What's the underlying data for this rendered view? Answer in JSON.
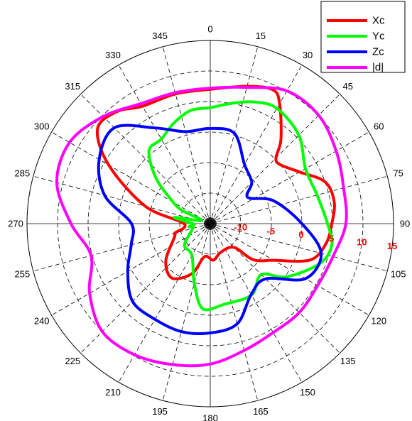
{
  "chart_data": {
    "type": "polar-line",
    "angular_axis": {
      "zero_direction": "top",
      "rotation": "clockwise",
      "tick_step_deg": 15,
      "tick_labels": [
        "0",
        "15",
        "30",
        "45",
        "60",
        "75",
        "90",
        "105",
        "120",
        "135",
        "150",
        "165",
        "180",
        "195",
        "210",
        "225",
        "240",
        "255",
        "270",
        "285",
        "300",
        "315",
        "330",
        "345"
      ]
    },
    "radial_axis": {
      "range": [
        -15,
        15
      ],
      "tick_values": [
        -10,
        -5,
        0,
        5,
        10,
        15
      ],
      "tick_labels": [
        "-10",
        "-5",
        "0",
        "5",
        "10",
        "15"
      ],
      "label_color": "#ff0000",
      "label_angle_deg": 97,
      "grid": "dashed"
    },
    "legend": {
      "placement": "top-right",
      "entries": [
        {
          "label": "Xc",
          "color": "#ff0000"
        },
        {
          "label": "Yc",
          "color": "#00ff00"
        },
        {
          "label": "Zc",
          "color": "#0000ff"
        },
        {
          "label": "|d|",
          "color": "#ff00ff"
        }
      ]
    },
    "series": [
      {
        "name": "Xc",
        "color": "#ff0000",
        "points": [
          [
            0,
            7.0
          ],
          [
            15,
            8.3
          ],
          [
            25,
            9.2
          ],
          [
            30,
            7.7
          ],
          [
            40,
            3.0
          ],
          [
            45,
            0.2
          ],
          [
            50,
            0.0
          ],
          [
            60,
            1.9
          ],
          [
            70,
            5.0
          ],
          [
            80,
            5.6
          ],
          [
            90,
            4.9
          ],
          [
            100,
            4.2
          ],
          [
            110,
            2.4
          ],
          [
            120,
            -3.0
          ],
          [
            130,
            -5.8
          ],
          [
            135,
            -9.5
          ],
          [
            160,
            -10.0
          ],
          [
            175,
            -9.0
          ],
          [
            190,
            -9.5
          ],
          [
            200,
            -6.3
          ],
          [
            215,
            -4.1
          ],
          [
            230,
            -5.5
          ],
          [
            250,
            -8.8
          ],
          [
            255,
            -9.0
          ],
          [
            270,
            -10.7
          ],
          [
            285,
            -4.0
          ],
          [
            300,
            4.2
          ],
          [
            310,
            9.1
          ],
          [
            320,
            8.9
          ],
          [
            330,
            7.2
          ],
          [
            345,
            7.0
          ],
          [
            360,
            7.0
          ]
        ]
      },
      {
        "name": "Yc",
        "color": "#00ff00",
        "points": [
          [
            0,
            4.0
          ],
          [
            10,
            5.0
          ],
          [
            20,
            6.2
          ],
          [
            30,
            6.8
          ],
          [
            45,
            5.5
          ],
          [
            60,
            3.0
          ],
          [
            75,
            3.1
          ],
          [
            90,
            4.2
          ],
          [
            100,
            5.2
          ],
          [
            110,
            4.1
          ],
          [
            125,
            0.2
          ],
          [
            135,
            -3.2
          ],
          [
            150,
            -1.5
          ],
          [
            170,
            -1.6
          ],
          [
            185,
            -1.0
          ],
          [
            195,
            -4.9
          ],
          [
            210,
            -9.0
          ],
          [
            230,
            -9.5
          ],
          [
            255,
            -12.0
          ],
          [
            262,
            -11.5
          ],
          [
            268,
            -12.3
          ],
          [
            280,
            -9.0
          ],
          [
            290,
            -13.5
          ],
          [
            295,
            -10.0
          ],
          [
            300,
            -8.0
          ],
          [
            310,
            -3.4
          ],
          [
            320,
            0.6
          ],
          [
            330,
            1.0
          ],
          [
            340,
            2.5
          ],
          [
            350,
            3.8
          ],
          [
            360,
            4.0
          ]
        ]
      },
      {
        "name": "Zc",
        "color": "#0000ff",
        "points": [
          [
            0,
            0.6
          ],
          [
            15,
            0.3
          ],
          [
            30,
            -3.8
          ],
          [
            45,
            -5.4
          ],
          [
            55,
            -7.5
          ],
          [
            70,
            -4.0
          ],
          [
            90,
            0.0
          ],
          [
            105,
            3.8
          ],
          [
            120,
            3.0
          ],
          [
            135,
            -2.2
          ],
          [
            150,
            -1.6
          ],
          [
            165,
            2.0
          ],
          [
            180,
            2.9
          ],
          [
            195,
            3.3
          ],
          [
            210,
            3.1
          ],
          [
            225,
            3.0
          ],
          [
            240,
            0.6
          ],
          [
            255,
            -1.6
          ],
          [
            270,
            -2.1
          ],
          [
            285,
            2.9
          ],
          [
            300,
            6.0
          ],
          [
            315,
            7.2
          ],
          [
            330,
            3.1
          ],
          [
            345,
            0.6
          ],
          [
            360,
            0.6
          ]
        ]
      },
      {
        "name": "|d|",
        "color": "#ff00ff",
        "points": [
          [
            0,
            7.2
          ],
          [
            15,
            8.1
          ],
          [
            30,
            10.1
          ],
          [
            45,
            10.1
          ],
          [
            60,
            8.8
          ],
          [
            75,
            7.6
          ],
          [
            90,
            7.2
          ],
          [
            105,
            5.8
          ],
          [
            120,
            5.3
          ],
          [
            135,
            5.6
          ],
          [
            150,
            5.6
          ],
          [
            165,
            6.5
          ],
          [
            180,
            8.0
          ],
          [
            195,
            8.9
          ],
          [
            210,
            9.8
          ],
          [
            225,
            10.0
          ],
          [
            240,
            7.8
          ],
          [
            255,
            5.2
          ],
          [
            270,
            7.8
          ],
          [
            285,
            11.0
          ],
          [
            300,
            11.6
          ],
          [
            315,
            9.8
          ],
          [
            330,
            7.7
          ],
          [
            345,
            7.2
          ],
          [
            360,
            7.2
          ]
        ]
      }
    ]
  }
}
